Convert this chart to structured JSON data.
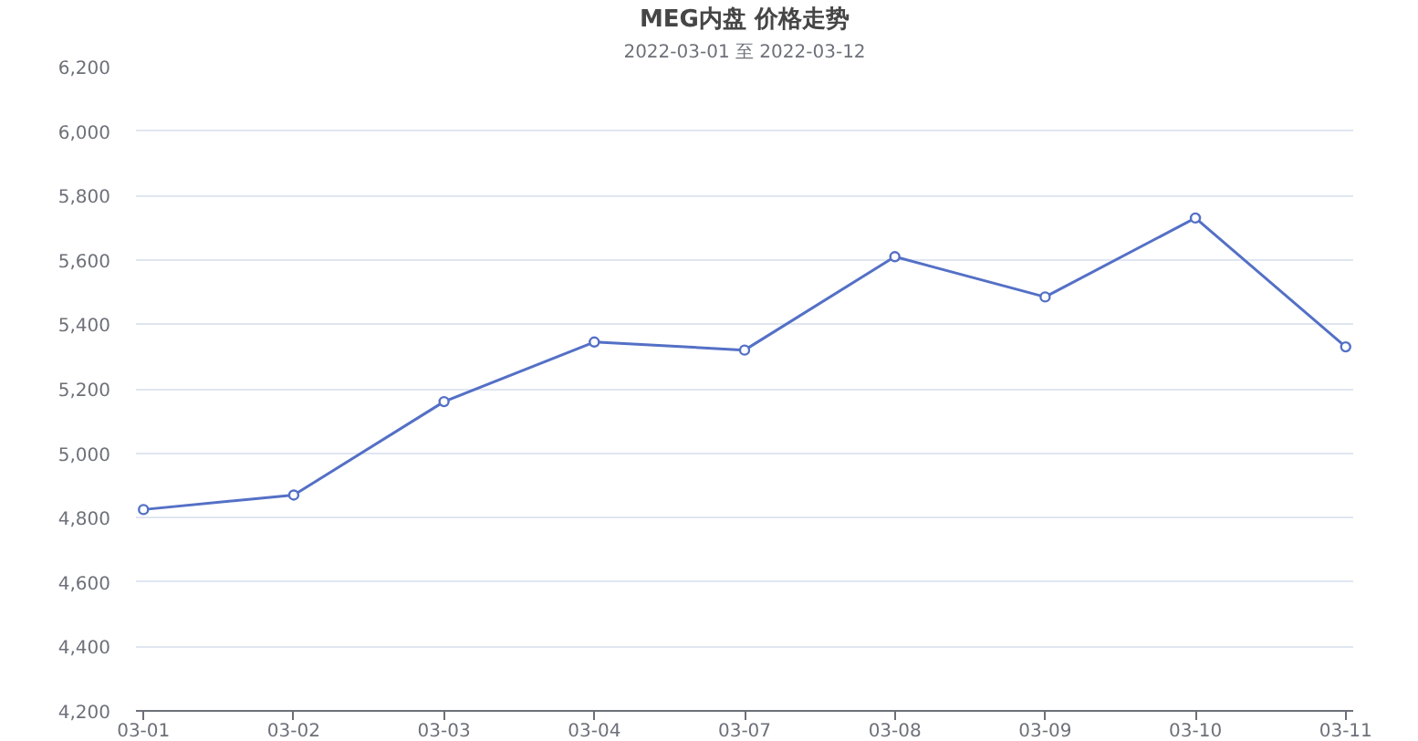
{
  "chart_data": {
    "type": "line",
    "title": "MEG内盘 价格走势",
    "subtitle": "2022-03-01 至 2022-03-12",
    "categories": [
      "03-01",
      "03-02",
      "03-03",
      "03-04",
      "03-07",
      "03-08",
      "03-09",
      "03-10",
      "03-11"
    ],
    "series": [
      {
        "color": "#5470c6",
        "values": [
          4825,
          4870,
          5160,
          5345,
          5320,
          5610,
          5485,
          5730,
          5330
        ]
      }
    ],
    "ylim": [
      4200,
      6200
    ],
    "yticks": [
      {
        "value": 4200,
        "label": "4,200"
      },
      {
        "value": 4400,
        "label": "4,400"
      },
      {
        "value": 4600,
        "label": "4,600"
      },
      {
        "value": 4800,
        "label": "4,800"
      },
      {
        "value": 5000,
        "label": "5,000"
      },
      {
        "value": 5200,
        "label": "5,200"
      },
      {
        "value": 5400,
        "label": "5,400"
      },
      {
        "value": 5600,
        "label": "5,600"
      },
      {
        "value": 5800,
        "label": "5,800"
      },
      {
        "value": 6000,
        "label": "6,000"
      },
      {
        "value": 6200,
        "label": "6,200"
      }
    ],
    "grid": "y",
    "marker": "circle",
    "line_style": "solid"
  }
}
